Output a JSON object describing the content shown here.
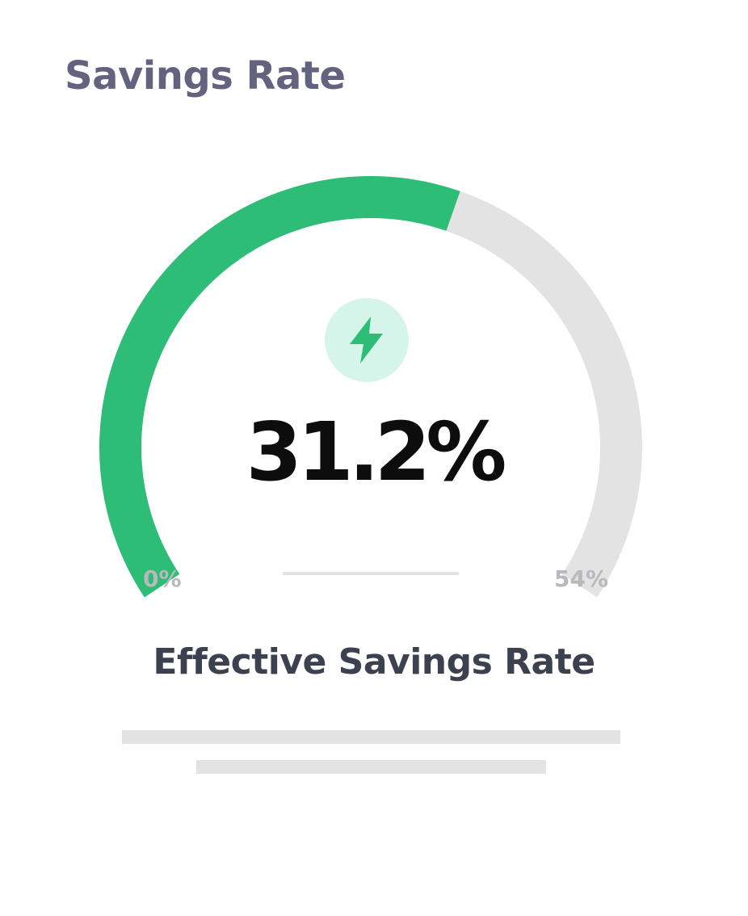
{
  "header": {
    "title": "Savings Rate"
  },
  "gauge": {
    "value": 31.2,
    "value_label": "31.2%",
    "min": 0,
    "max": 54,
    "min_label": "0%",
    "max_label": "54%",
    "icon": "lightning-icon",
    "colors": {
      "fill": "#2ebd77",
      "track": "#e3e3e3",
      "icon_bg": "#d5f5ea",
      "icon": "#2ebd77"
    }
  },
  "caption": {
    "label": "Effective Savings Rate"
  }
}
